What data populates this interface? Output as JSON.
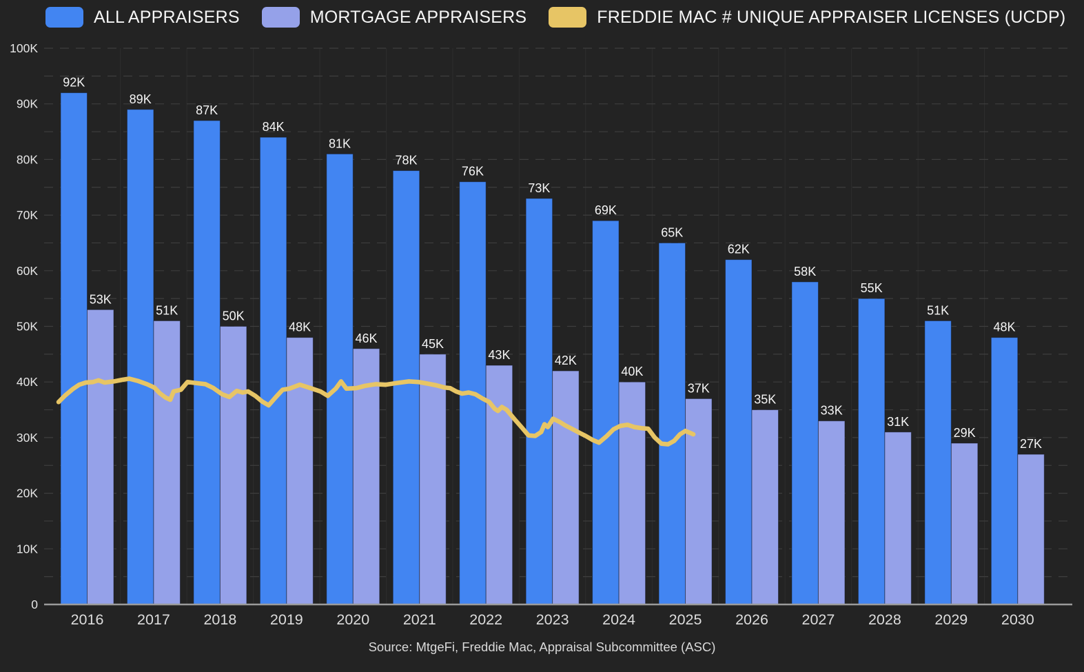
{
  "source_note": "Source: MtgeFi, Freddie Mac, Appraisal Subcommittee (ASC)",
  "colors": {
    "background": "#232323",
    "bar_all_appraisers": "#4285f2",
    "bar_mortgage_appraisers": "#95a1e9",
    "line_freddie_mac": "#e7c565",
    "gridline": "#3e3e3e",
    "axis_line": "#9b9b9b",
    "label_text": "#f5f5f5"
  },
  "chart_data": {
    "type": "combo",
    "title": "",
    "xlabel": "",
    "ylabel": "",
    "ylim_k": [
      0,
      100
    ],
    "gridline_step_k": 5,
    "grid": "horizontal-dashed",
    "legend_position": "top-left",
    "y_tick_labels": [
      "0",
      "10K",
      "20K",
      "30K",
      "40K",
      "50K",
      "60K",
      "70K",
      "80K",
      "90K",
      "100K"
    ],
    "categories": [
      "2016",
      "2017",
      "2018",
      "2019",
      "2020",
      "2021",
      "2022",
      "2023",
      "2024",
      "2025",
      "2026",
      "2027",
      "2028",
      "2029",
      "2030"
    ],
    "series": [
      {
        "name": "ALL APPRAISERS",
        "type": "bar",
        "color": "#4285f2",
        "values_k": [
          92,
          89,
          87,
          84,
          81,
          78,
          76,
          73,
          69,
          65,
          62,
          58,
          55,
          51,
          48
        ],
        "labels": [
          "92K",
          "89K",
          "87K",
          "84K",
          "81K",
          "78K",
          "76K",
          "73K",
          "69K",
          "65K",
          "62K",
          "58K",
          "55K",
          "51K",
          "48K"
        ]
      },
      {
        "name": "MORTGAGE APPRAISERS",
        "type": "bar",
        "color": "#95a1e9",
        "values_k": [
          53,
          51,
          50,
          48,
          46,
          45,
          43,
          42,
          40,
          37,
          35,
          33,
          31,
          29,
          27
        ],
        "labels": [
          "53K",
          "51K",
          "50K",
          "48K",
          "46K",
          "45K",
          "43K",
          "42K",
          "40K",
          "37K",
          "35K",
          "33K",
          "31K",
          "29K",
          "27K"
        ]
      },
      {
        "name": "FREDDIE MAC # UNIQUE APPRAISER LICENSES (UCDP)",
        "type": "line",
        "color": "#e7c565",
        "points_year_valueK": [
          [
            2016.07,
            36.4
          ],
          [
            2016.17,
            37.6
          ],
          [
            2016.28,
            38.7
          ],
          [
            2016.38,
            39.5
          ],
          [
            2016.48,
            39.9
          ],
          [
            2016.59,
            40.0
          ],
          [
            2016.67,
            40.3
          ],
          [
            2016.76,
            39.9
          ],
          [
            2016.9,
            40.1
          ],
          [
            2017.03,
            40.4
          ],
          [
            2017.13,
            40.6
          ],
          [
            2017.26,
            40.2
          ],
          [
            2017.4,
            39.6
          ],
          [
            2017.51,
            39.0
          ],
          [
            2017.59,
            38.0
          ],
          [
            2017.68,
            37.2
          ],
          [
            2017.75,
            36.8
          ],
          [
            2017.8,
            38.3
          ],
          [
            2017.91,
            38.6
          ],
          [
            2018.01,
            40.0
          ],
          [
            2018.14,
            39.8
          ],
          [
            2018.28,
            39.6
          ],
          [
            2018.4,
            38.9
          ],
          [
            2018.53,
            37.8
          ],
          [
            2018.64,
            37.3
          ],
          [
            2018.75,
            38.4
          ],
          [
            2018.84,
            38.1
          ],
          [
            2018.92,
            38.3
          ],
          [
            2019.03,
            37.5
          ],
          [
            2019.13,
            36.5
          ],
          [
            2019.23,
            35.8
          ],
          [
            2019.34,
            37.3
          ],
          [
            2019.44,
            38.6
          ],
          [
            2019.54,
            38.8
          ],
          [
            2019.7,
            39.5
          ],
          [
            2019.86,
            38.9
          ],
          [
            2020.01,
            38.3
          ],
          [
            2020.12,
            37.5
          ],
          [
            2020.24,
            38.8
          ],
          [
            2020.32,
            40.1
          ],
          [
            2020.4,
            38.8
          ],
          [
            2020.55,
            38.9
          ],
          [
            2020.68,
            39.3
          ],
          [
            2020.84,
            39.6
          ],
          [
            2020.99,
            39.5
          ],
          [
            2021.15,
            39.8
          ],
          [
            2021.34,
            40.1
          ],
          [
            2021.48,
            40.0
          ],
          [
            2021.62,
            39.7
          ],
          [
            2021.75,
            39.4
          ],
          [
            2021.88,
            39.0
          ],
          [
            2021.96,
            38.9
          ],
          [
            2022.05,
            38.3
          ],
          [
            2022.14,
            37.9
          ],
          [
            2022.24,
            38.1
          ],
          [
            2022.34,
            37.8
          ],
          [
            2022.45,
            37.0
          ],
          [
            2022.55,
            36.4
          ],
          [
            2022.63,
            35.2
          ],
          [
            2022.68,
            34.8
          ],
          [
            2022.74,
            35.5
          ],
          [
            2022.81,
            35.0
          ],
          [
            2022.93,
            33.3
          ],
          [
            2023.04,
            31.8
          ],
          [
            2023.14,
            30.4
          ],
          [
            2023.24,
            30.3
          ],
          [
            2023.33,
            31.0
          ],
          [
            2023.38,
            32.4
          ],
          [
            2023.43,
            31.9
          ],
          [
            2023.51,
            33.4
          ],
          [
            2023.61,
            32.8
          ],
          [
            2023.69,
            32.2
          ],
          [
            2023.79,
            31.6
          ],
          [
            2023.9,
            30.9
          ],
          [
            2024.0,
            30.3
          ],
          [
            2024.1,
            29.6
          ],
          [
            2024.2,
            29.1
          ],
          [
            2024.31,
            30.2
          ],
          [
            2024.42,
            31.5
          ],
          [
            2024.52,
            32.1
          ],
          [
            2024.63,
            32.3
          ],
          [
            2024.73,
            31.9
          ],
          [
            2024.84,
            31.7
          ],
          [
            2024.94,
            31.6
          ],
          [
            2025.04,
            30.0
          ],
          [
            2025.14,
            28.9
          ],
          [
            2025.24,
            28.8
          ],
          [
            2025.33,
            29.4
          ],
          [
            2025.42,
            30.6
          ],
          [
            2025.5,
            31.2
          ],
          [
            2025.56,
            30.9
          ],
          [
            2025.62,
            30.6
          ]
        ]
      }
    ]
  }
}
